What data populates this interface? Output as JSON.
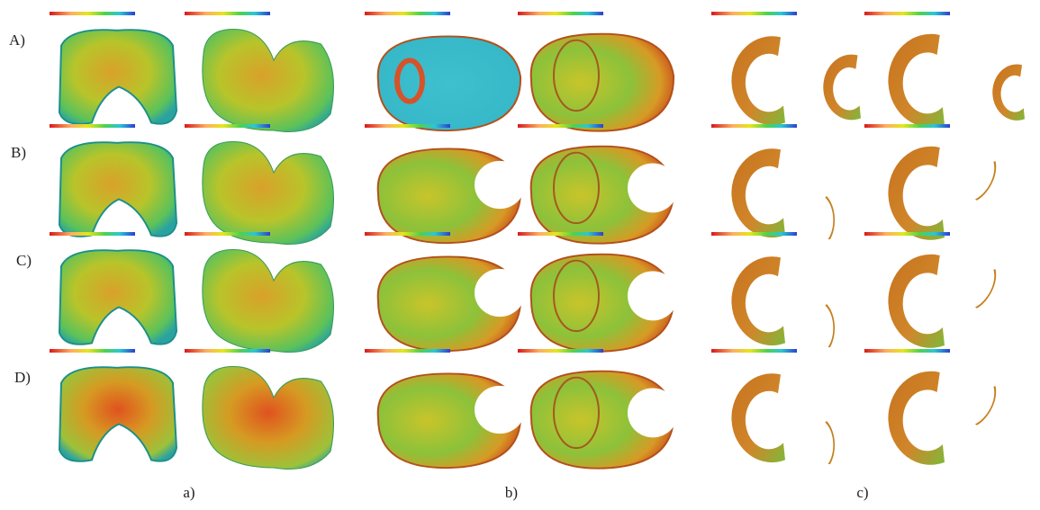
{
  "row_labels": [
    "A)",
    "B)",
    "C)",
    "D)"
  ],
  "column_labels": [
    "a)",
    "b)",
    "c)"
  ]
}
